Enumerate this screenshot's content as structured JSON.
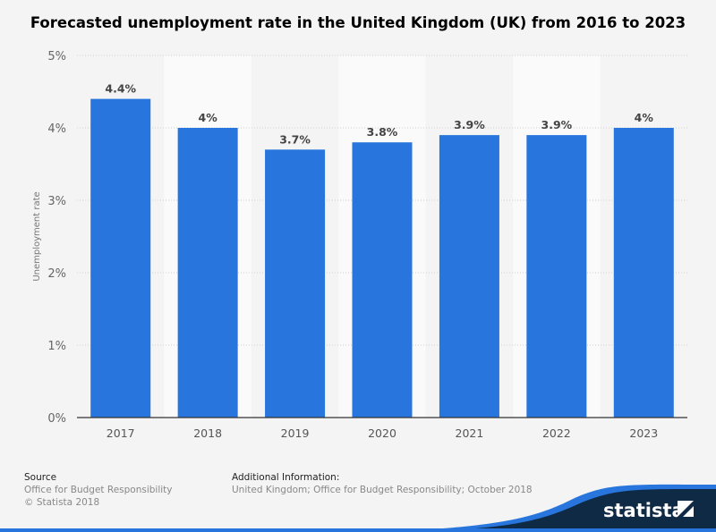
{
  "chart_data": {
    "type": "bar",
    "title": "Forecasted unemployment rate in the United Kingdom (UK) from 2016 to 2023",
    "categories": [
      "2017",
      "2018",
      "2019",
      "2020",
      "2021",
      "2022",
      "2023"
    ],
    "values": [
      4.4,
      4.0,
      3.7,
      3.8,
      3.9,
      3.9,
      4.0
    ],
    "data_labels": [
      "4.4%",
      "4%",
      "3.7%",
      "3.8%",
      "3.9%",
      "3.9%",
      "4%"
    ],
    "xlabel": "",
    "ylabel": "Unemployment rate",
    "ylim": [
      0,
      5
    ],
    "yticks": [
      0,
      1,
      2,
      3,
      4,
      5
    ],
    "ytick_labels": [
      "0%",
      "1%",
      "2%",
      "3%",
      "4%",
      "5%"
    ],
    "grid": true,
    "bar_color": "#2876dd"
  },
  "footer": {
    "source_heading": "Source",
    "source": "Office for Budget Responsibility",
    "copyright": "© Statista 2018",
    "info_heading": "Additional Information:",
    "info": "United Kingdom; Office for Budget Responsibility; October 2018",
    "brand": "statista"
  }
}
